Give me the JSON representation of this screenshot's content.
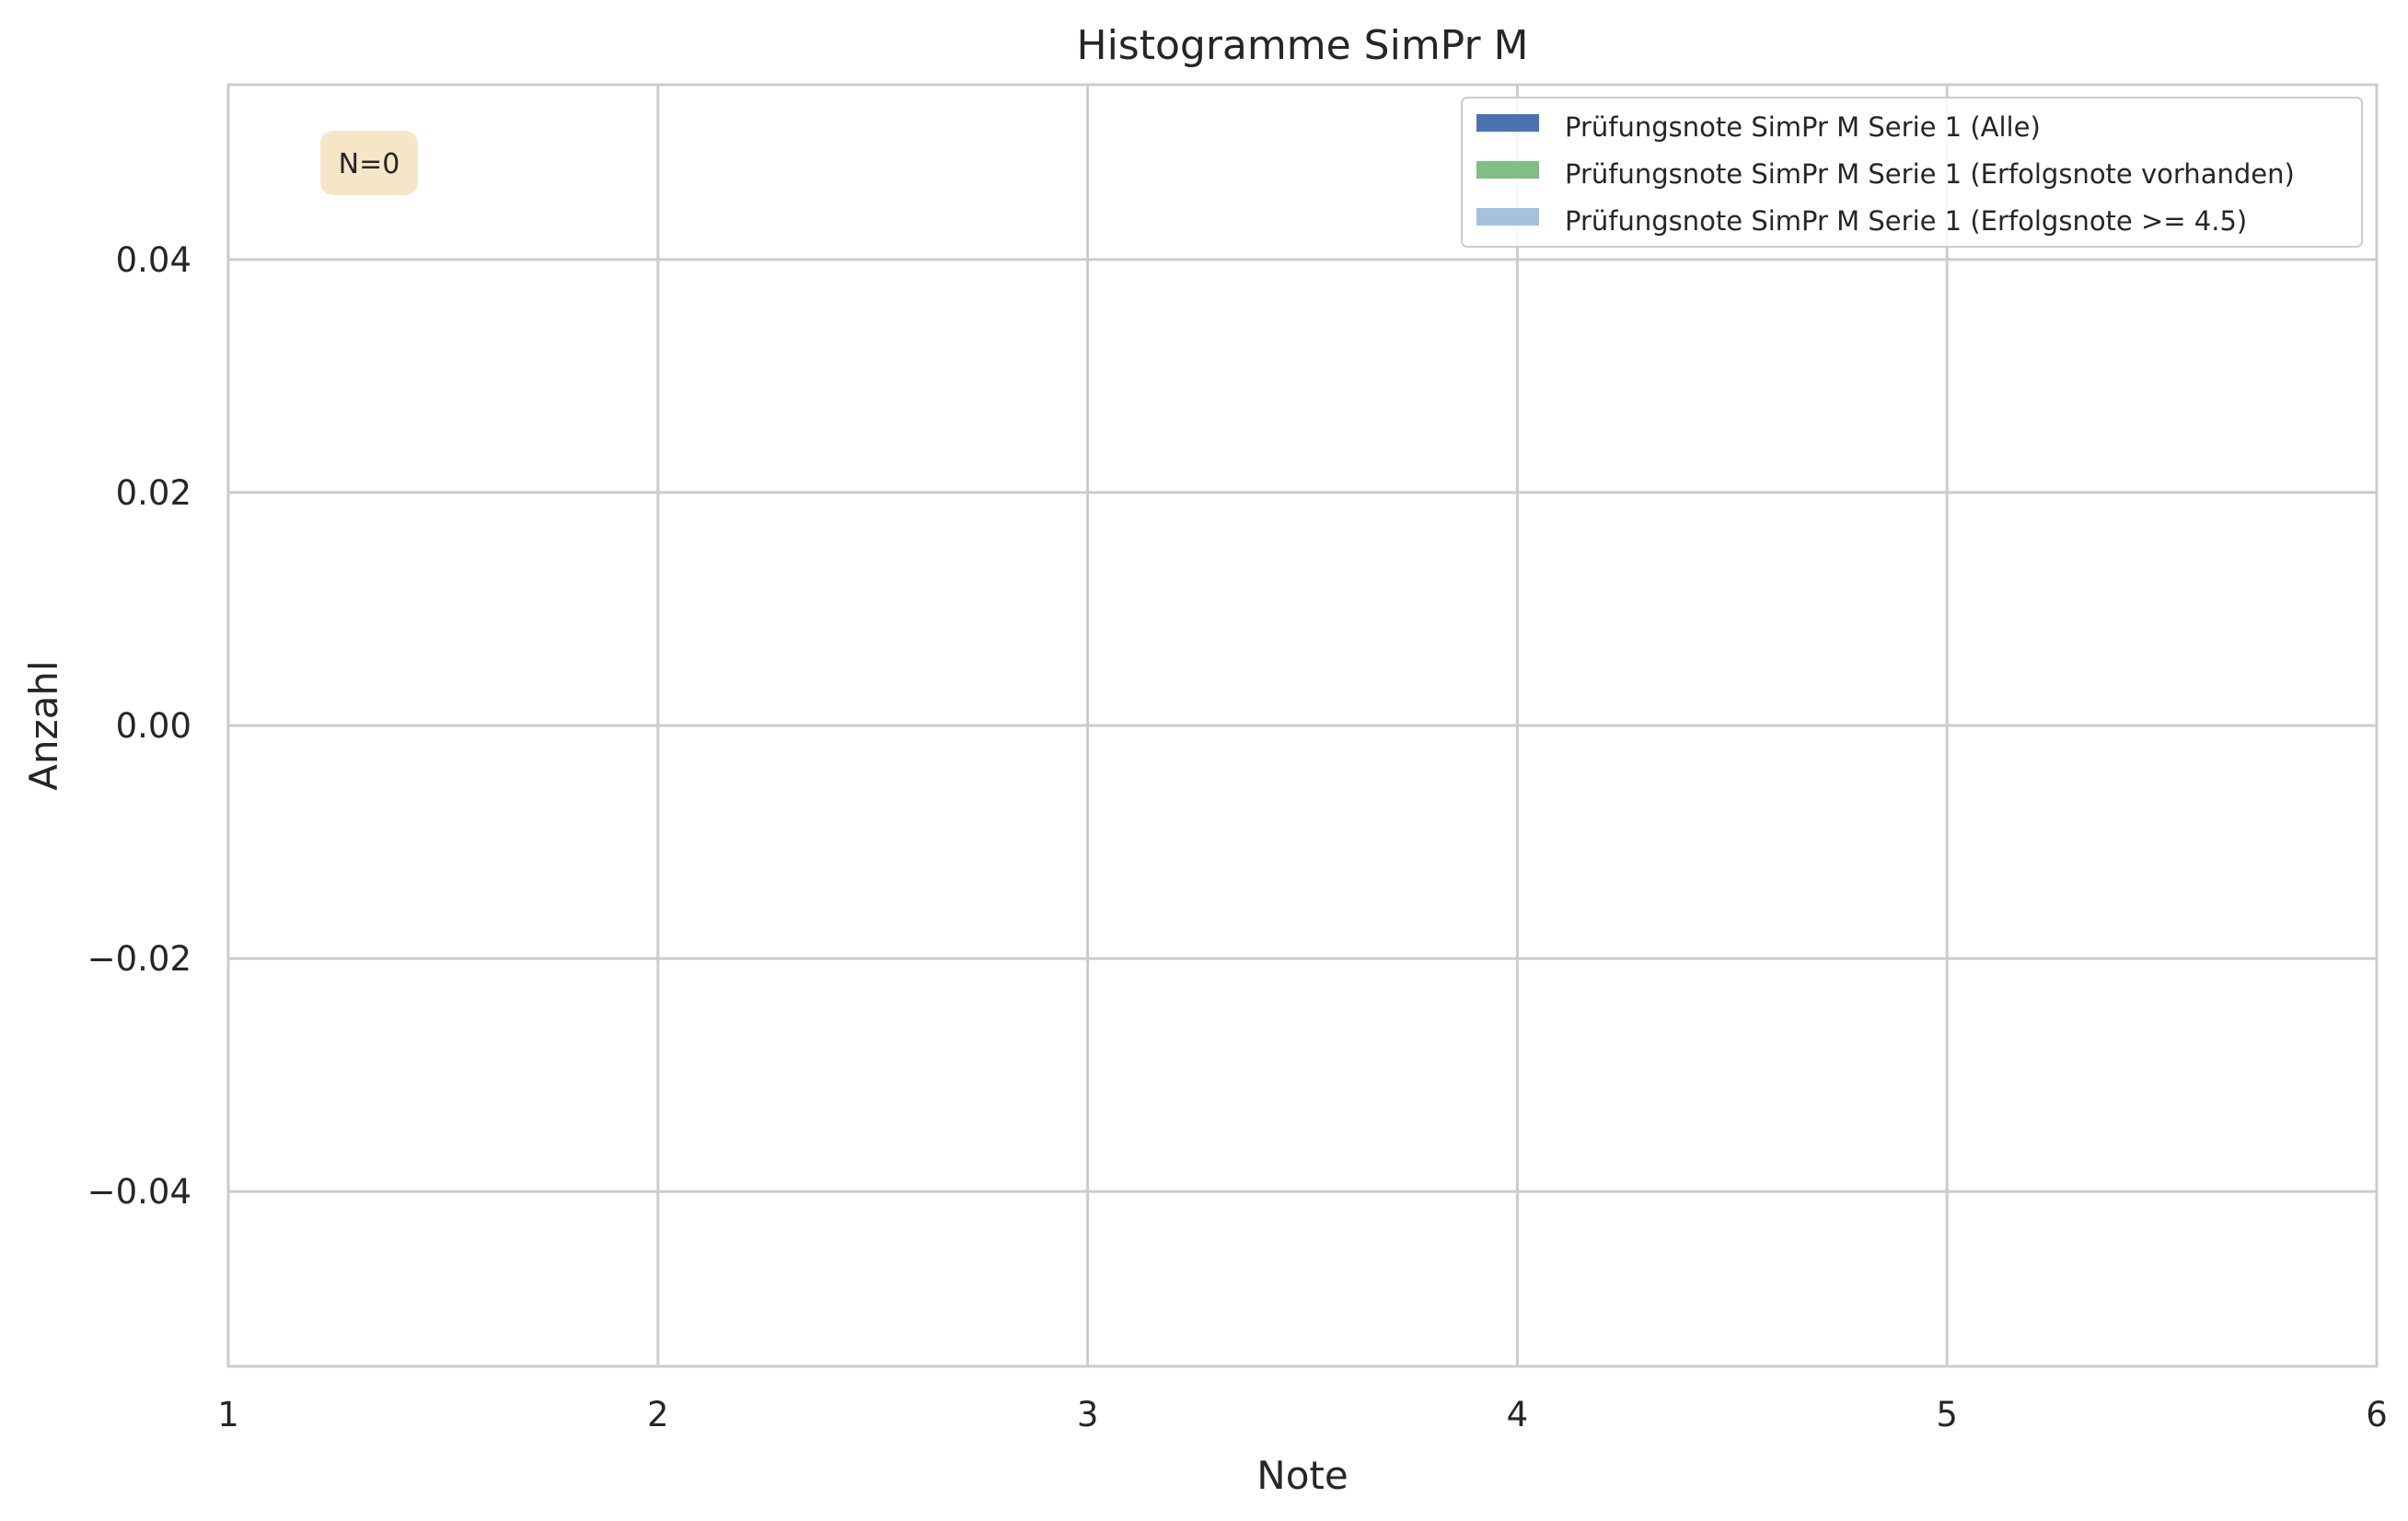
{
  "chart_data": {
    "type": "bar",
    "title": "Histogramme SimPr M",
    "xlabel": "Note",
    "ylabel": "Anzahl",
    "xlim": [
      1,
      6
    ],
    "ylim": [
      -0.055,
      0.055
    ],
    "x_ticks": [
      1,
      2,
      3,
      4,
      5,
      6
    ],
    "x_tick_labels": [
      "1",
      "2",
      "3",
      "4",
      "5",
      "6"
    ],
    "y_ticks": [
      -0.04,
      -0.02,
      0.0,
      0.02,
      0.04
    ],
    "y_tick_labels": [
      "−0.04",
      "−0.02",
      "0.00",
      "0.02",
      "0.04"
    ],
    "grid": true,
    "legend_position": "top-right",
    "series": [
      {
        "name": "Prüfungsnote SimPr M Serie 1 (Alle)",
        "color": "#4c72b0",
        "values": []
      },
      {
        "name": "Prüfungsnote SimPr M Serie 1 (Erfolgsnote vorhanden)",
        "color": "#7fbf85",
        "values": []
      },
      {
        "name": "Prüfungsnote SimPr M Serie 1 (Erfolgsnote >= 4.5)",
        "color": "#a6c1db",
        "values": []
      }
    ],
    "annotation": {
      "text": "N=0",
      "background": "#f5e6c8"
    }
  }
}
